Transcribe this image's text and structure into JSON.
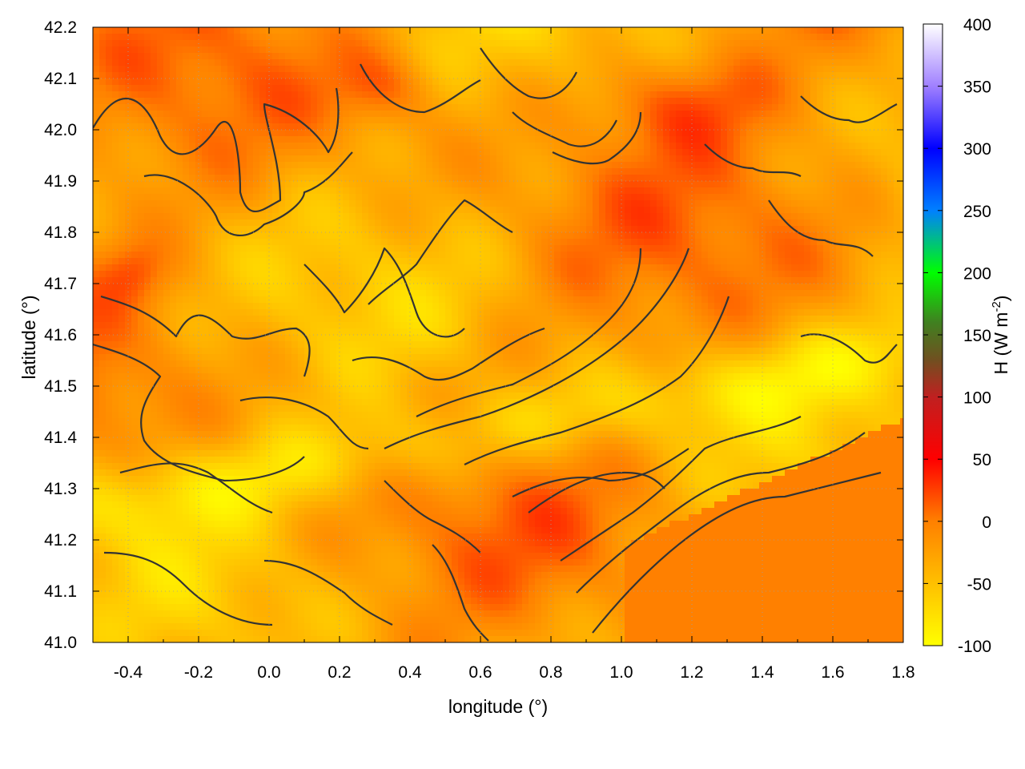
{
  "chart_data": {
    "type": "heatmap",
    "title": "",
    "xlabel": "longitude (°)",
    "ylabel": "latitude (°)",
    "xlim": [
      -0.5,
      1.8
    ],
    "ylim": [
      41.0,
      42.2
    ],
    "x_ticks": [
      "-0.4",
      "-0.2",
      "0.0",
      "0.2",
      "0.4",
      "0.6",
      "0.8",
      "1.0",
      "1.2",
      "1.4",
      "1.6",
      "1.8"
    ],
    "y_ticks": [
      "41.0",
      "41.1",
      "41.2",
      "41.3",
      "41.4",
      "41.5",
      "41.6",
      "41.7",
      "41.8",
      "41.9",
      "42.0",
      "42.1",
      "42.2"
    ],
    "grid": true,
    "colorbar": {
      "label_main": "H (W m",
      "label_sup": "-2",
      "label_close": ")",
      "range": [
        -100,
        400
      ],
      "ticks": [
        "-100",
        "-50",
        "0",
        "50",
        "100",
        "150",
        "200",
        "250",
        "300",
        "350",
        "400"
      ],
      "gradient": [
        {
          "value": -100,
          "color": "#ffff00"
        },
        {
          "value": -50,
          "color": "#ffc000"
        },
        {
          "value": 0,
          "color": "#ff8000"
        },
        {
          "value": 50,
          "color": "#ff0000"
        },
        {
          "value": 100,
          "color": "#c02020"
        },
        {
          "value": 130,
          "color": "#705020"
        },
        {
          "value": 160,
          "color": "#408020"
        },
        {
          "value": 200,
          "color": "#00ff00"
        },
        {
          "value": 250,
          "color": "#0080ff"
        },
        {
          "value": 300,
          "color": "#0000ff"
        },
        {
          "value": 350,
          "color": "#a080ff"
        },
        {
          "value": 400,
          "color": "#ffffff"
        }
      ]
    },
    "field_approx": {
      "description": "",
      "typical_values": [
        -80,
        -40,
        -10,
        10,
        30,
        50
      ]
    },
    "contour_color": "#333333"
  }
}
